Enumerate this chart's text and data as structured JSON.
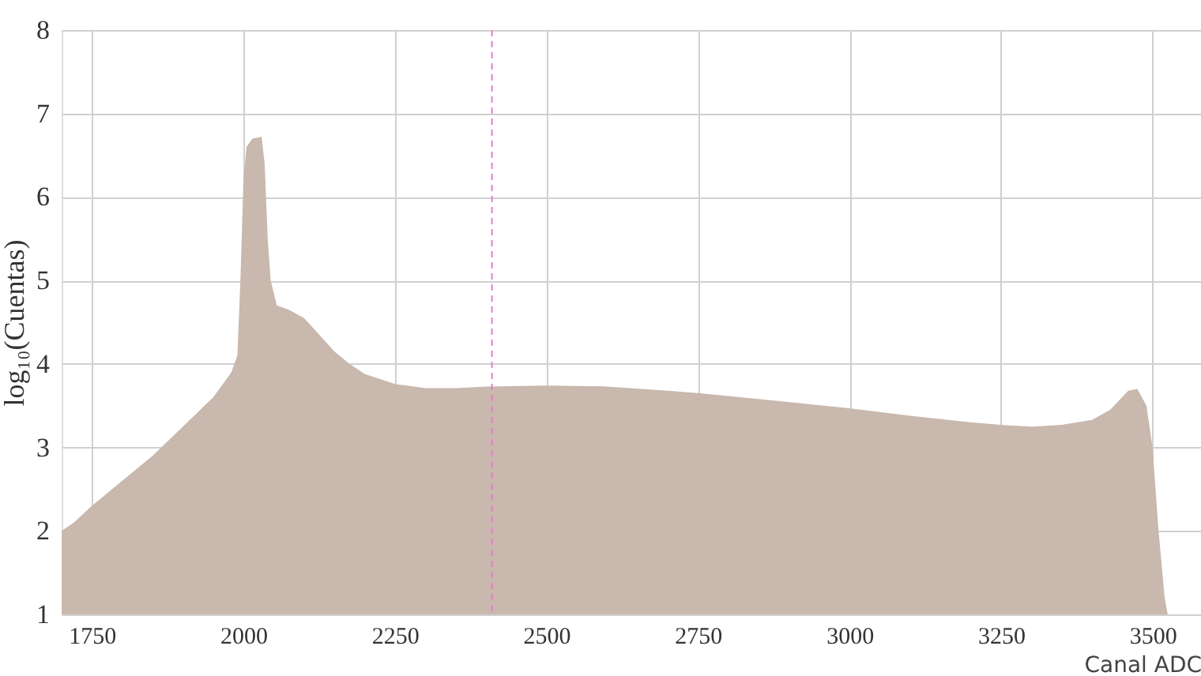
{
  "chart_data": {
    "type": "area",
    "xlabel": "Canal ADC",
    "ylabel": "log₁₀(Cuentas)",
    "x": [
      1700,
      1720,
      1750,
      1800,
      1850,
      1900,
      1950,
      1980,
      1990,
      1995,
      2000,
      2005,
      2015,
      2030,
      2035,
      2040,
      2045,
      2055,
      2075,
      2100,
      2125,
      2150,
      2175,
      2200,
      2250,
      2300,
      2350,
      2400,
      2500,
      2600,
      2700,
      2750,
      2850,
      3000,
      3100,
      3200,
      3250,
      3300,
      3350,
      3400,
      3430,
      3460,
      3475,
      3490,
      3500,
      3510,
      3520,
      3525
    ],
    "series": [
      {
        "color": "#c8b8ad",
        "values": [
          2.0,
          2.1,
          2.3,
          2.6,
          2.9,
          3.25,
          3.6,
          3.9,
          4.1,
          5.0,
          6.2,
          6.6,
          6.7,
          6.72,
          6.4,
          5.5,
          5.0,
          4.7,
          4.65,
          4.55,
          4.35,
          4.15,
          4.0,
          3.88,
          3.76,
          3.71,
          3.71,
          3.73,
          3.74,
          3.73,
          3.68,
          3.65,
          3.58,
          3.47,
          3.38,
          3.3,
          3.27,
          3.25,
          3.27,
          3.33,
          3.45,
          3.68,
          3.7,
          3.5,
          3.0,
          2.0,
          1.2,
          1.0
        ]
      }
    ],
    "xlim": [
      1700,
      3580
    ],
    "xticks": [
      1750,
      2000,
      2250,
      2500,
      2750,
      3000,
      3250,
      3500
    ],
    "ylim": [
      1,
      8
    ],
    "yticks": [
      1,
      2,
      3,
      4,
      5,
      6,
      7,
      8
    ],
    "grid": true,
    "ref_lines": [
      {
        "axis": "x",
        "value": 2410,
        "color": "#e87dc8",
        "line_style": "dashed"
      }
    ]
  }
}
